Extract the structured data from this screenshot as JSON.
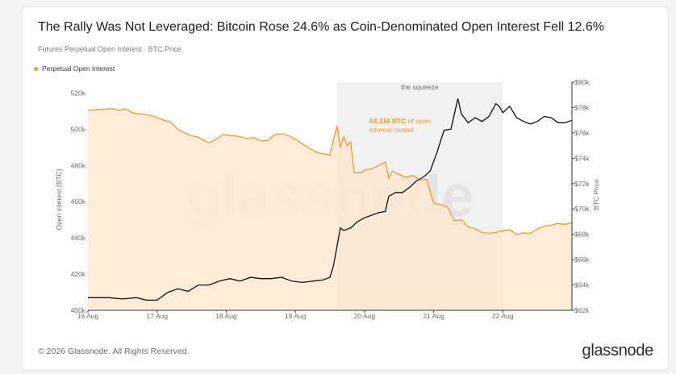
{
  "header": {
    "title": "The Rally Was Not Leveraged: Bitcoin Rose 24.6% as Coin-Denominated Open Interest Fell 12.6%",
    "subtitle": "Futures Perpetual Open Interest · BTC Price"
  },
  "legend": {
    "label": "Perpetual Open Interest"
  },
  "footer": {
    "copyright": "© 2026 Glassnode. All Rights Reserved.",
    "brand": "glassnode"
  },
  "watermark": "glassnode",
  "colors": {
    "oi": "#f29a2e",
    "oi_fill": "#fde7cf",
    "price": "#111111",
    "band": "#ececec"
  },
  "chart_data": {
    "type": "line",
    "x_ticks": [
      "16 Aug",
      "17 Aug",
      "18 Aug",
      "19 Aug",
      "20 Aug",
      "21 Aug",
      "22 Aug"
    ],
    "x_range": [
      16,
      23
    ],
    "left_axis": {
      "label": "Open interest (BTC)",
      "ticks": [
        "520k",
        "500k",
        "480k",
        "460k",
        "440k",
        "420k",
        "400k"
      ],
      "range": [
        400000,
        526000
      ]
    },
    "right_axis": {
      "label": "BTC Price",
      "ticks": [
        "$80k",
        "$78k",
        "$76k",
        "$74k",
        "$72k",
        "$70k",
        "$68k",
        "$66k",
        "$64k",
        "$62k"
      ],
      "range": [
        62000,
        80000
      ]
    },
    "highlight": {
      "label": "the squeeze",
      "x_start": 19.6,
      "x_end": 22.0
    },
    "annotation": {
      "bold": "64,116 BTC",
      "text": " of open",
      "text2": "interest closed"
    },
    "series": [
      {
        "name": "Perpetual Open Interest",
        "axis": "left",
        "x": [
          16.0,
          16.2,
          16.35,
          16.45,
          16.55,
          16.65,
          16.75,
          16.85,
          16.95,
          17.1,
          17.2,
          17.3,
          17.4,
          17.5,
          17.6,
          17.75,
          17.85,
          17.95,
          18.1,
          18.2,
          18.3,
          18.4,
          18.5,
          18.6,
          18.7,
          18.8,
          18.9,
          19.0,
          19.1,
          19.2,
          19.3,
          19.4,
          19.5,
          19.6,
          19.65,
          19.7,
          19.75,
          19.8,
          19.85,
          19.95,
          20.0,
          20.1,
          20.2,
          20.3,
          20.35,
          20.4,
          20.5,
          20.6,
          20.7,
          20.8,
          20.9,
          20.95,
          21.0,
          21.1,
          21.2,
          21.3,
          21.4,
          21.5,
          21.6,
          21.7,
          21.8,
          21.9,
          22.0,
          22.1,
          22.2,
          22.3,
          22.4,
          22.5,
          22.6,
          22.7,
          22.8,
          22.9,
          23.0
        ],
        "y": [
          510500,
          511000,
          511500,
          510500,
          511200,
          509000,
          508500,
          508000,
          507200,
          505000,
          504000,
          500000,
          498000,
          496500,
          495500,
          492500,
          494500,
          497000,
          496500,
          495800,
          494800,
          495500,
          493500,
          493800,
          497000,
          497500,
          496500,
          494500,
          492000,
          489500,
          487500,
          486500,
          485800,
          502000,
          490000,
          496000,
          491000,
          493000,
          476000,
          476000,
          477500,
          478000,
          480000,
          482000,
          473000,
          477000,
          475000,
          473500,
          474500,
          472000,
          472300,
          465500,
          459000,
          458500,
          457000,
          449500,
          450000,
          446000,
          445000,
          443000,
          442500,
          443000,
          444000,
          444500,
          442000,
          442800,
          442500,
          445000,
          446500,
          447000,
          448000,
          447500,
          448500
        ]
      },
      {
        "name": "BTC Price",
        "axis": "right",
        "x": [
          16.0,
          16.3,
          16.5,
          16.7,
          16.85,
          17.0,
          17.15,
          17.3,
          17.45,
          17.6,
          17.75,
          17.9,
          18.05,
          18.2,
          18.35,
          18.5,
          18.65,
          18.8,
          18.95,
          19.1,
          19.25,
          19.4,
          19.5,
          19.55,
          19.6,
          19.65,
          19.7,
          19.8,
          19.9,
          20.0,
          20.1,
          20.2,
          20.3,
          20.35,
          20.45,
          20.55,
          20.65,
          20.75,
          20.85,
          20.95,
          21.05,
          21.15,
          21.25,
          21.3,
          21.35,
          21.4,
          21.5,
          21.6,
          21.7,
          21.8,
          21.9,
          21.95,
          22.0,
          22.1,
          22.2,
          22.3,
          22.4,
          22.5,
          22.6,
          22.7,
          22.8,
          22.9,
          23.0
        ],
        "y": [
          63000,
          63000,
          62900,
          63000,
          62800,
          62800,
          63400,
          63700,
          63500,
          64000,
          64000,
          64300,
          64500,
          64300,
          64600,
          64500,
          64500,
          64600,
          64300,
          64200,
          64300,
          64400,
          64600,
          65500,
          67000,
          68500,
          68300,
          68500,
          69000,
          69300,
          69500,
          69700,
          69800,
          71000,
          71300,
          71300,
          71700,
          72200,
          72500,
          73000,
          74500,
          76200,
          76300,
          77500,
          78700,
          77500,
          76800,
          77200,
          76900,
          77300,
          78300,
          78100,
          77600,
          78100,
          77200,
          76900,
          76700,
          76900,
          77300,
          77200,
          76800,
          76800,
          77000
        ]
      }
    ]
  }
}
